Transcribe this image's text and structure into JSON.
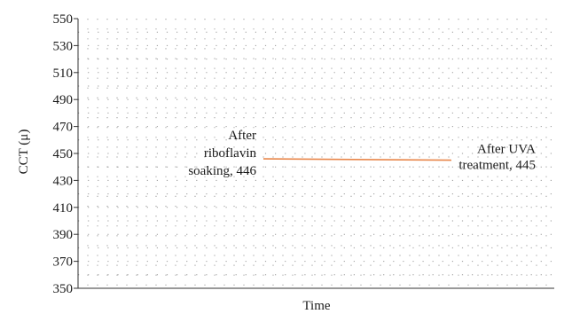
{
  "chart_data": {
    "type": "line",
    "title": "",
    "xlabel": "Time",
    "ylabel": "CCT (μ)",
    "ylim": [
      350,
      550
    ],
    "yticks": [
      350,
      370,
      390,
      410,
      430,
      450,
      470,
      490,
      510,
      530,
      550
    ],
    "grid": true,
    "series": [
      {
        "values": [
          446,
          445
        ],
        "color": "#e8864a"
      }
    ],
    "annotations": [
      {
        "lines": [
          "After",
          "riboflavin",
          "soaking, 446"
        ],
        "anchor": "start-point"
      },
      {
        "lines": [
          "After UVA",
          "treatment, 445"
        ],
        "anchor": "end-point"
      }
    ]
  }
}
